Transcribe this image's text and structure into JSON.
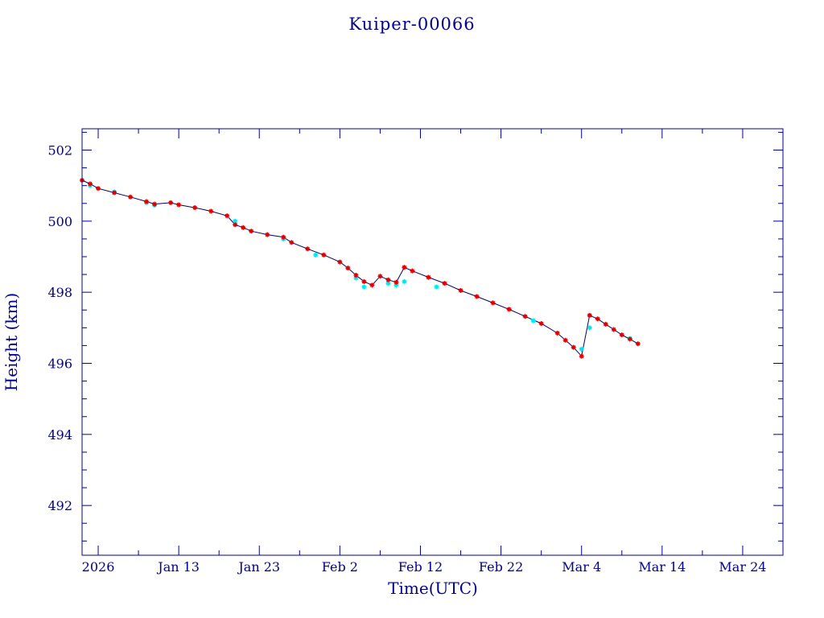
{
  "chart_data": {
    "type": "line",
    "title": "Kuiper-00066",
    "xlabel": "Time(UTC)",
    "ylabel": "Height (km)",
    "xlim": [
      "2026-01-01",
      "2026-03-29"
    ],
    "ylim": [
      490.6,
      502.6
    ],
    "x_ticks": [
      "2026-01-03",
      "2026-01-13",
      "2026-01-23",
      "2026-02-02",
      "2026-02-12",
      "2026-02-22",
      "2026-03-04",
      "2026-03-14",
      "2026-03-24"
    ],
    "x_tick_labels": [
      "2026",
      "Jan 13",
      "Jan 23",
      "Feb  2",
      "Feb 12",
      "Feb 22",
      "Mar  4",
      "Mar 14",
      "Mar 24"
    ],
    "y_ticks": [
      492,
      494,
      496,
      498,
      500,
      502
    ],
    "y_tick_labels": [
      "492",
      "494",
      "496",
      "498",
      "500",
      "502"
    ],
    "grid": false,
    "colors": {
      "frame": "#00008b",
      "line": "#000066",
      "primary_marker": "#dd0000",
      "secondary_marker": "#00e5ee"
    },
    "series": [
      {
        "marker": "red-asterisk",
        "x": [
          "2026-01-01",
          "2026-01-02",
          "2026-01-03",
          "2026-01-05",
          "2026-01-07",
          "2026-01-09",
          "2026-01-10",
          "2026-01-12",
          "2026-01-13",
          "2026-01-15",
          "2026-01-17",
          "2026-01-19",
          "2026-01-20",
          "2026-01-21",
          "2026-01-22",
          "2026-01-24",
          "2026-01-26",
          "2026-01-27",
          "2026-01-29",
          "2026-01-31",
          "2026-02-02",
          "2026-02-03",
          "2026-02-04",
          "2026-02-05",
          "2026-02-06",
          "2026-02-07",
          "2026-02-08",
          "2026-02-09",
          "2026-02-10",
          "2026-02-11",
          "2026-02-13",
          "2026-02-15",
          "2026-02-17",
          "2026-02-19",
          "2026-02-21",
          "2026-02-23",
          "2026-02-25",
          "2026-02-27",
          "2026-03-01",
          "2026-03-02",
          "2026-03-03",
          "2026-03-04",
          "2026-03-05",
          "2026-03-06",
          "2026-03-07",
          "2026-03-08",
          "2026-03-09",
          "2026-03-10",
          "2026-03-11"
        ],
        "y": [
          501.15,
          501.05,
          500.92,
          500.8,
          500.68,
          500.55,
          500.48,
          500.52,
          500.46,
          500.38,
          500.28,
          500.15,
          499.9,
          499.82,
          499.72,
          499.62,
          499.55,
          499.4,
          499.22,
          499.05,
          498.85,
          498.68,
          498.48,
          498.3,
          498.2,
          498.45,
          498.35,
          498.28,
          498.7,
          498.6,
          498.42,
          498.25,
          498.05,
          497.88,
          497.7,
          497.52,
          497.32,
          497.12,
          496.85,
          496.65,
          496.45,
          496.2,
          497.35,
          497.25,
          497.1,
          496.95,
          496.8,
          496.68,
          496.55
        ]
      },
      {
        "marker": "cyan-asterisk",
        "x": [
          "2026-01-02",
          "2026-01-05",
          "2026-01-09",
          "2026-01-10",
          "2026-01-20",
          "2026-01-26",
          "2026-01-30",
          "2026-02-04",
          "2026-02-05",
          "2026-02-08",
          "2026-02-09",
          "2026-02-10",
          "2026-02-14",
          "2026-02-26",
          "2026-03-04",
          "2026-03-05",
          "2026-03-10"
        ],
        "y": [
          501.0,
          500.82,
          500.52,
          500.45,
          500.0,
          499.5,
          499.05,
          498.4,
          498.15,
          498.25,
          498.2,
          498.3,
          498.15,
          497.2,
          496.4,
          497.0,
          496.7
        ]
      }
    ]
  }
}
